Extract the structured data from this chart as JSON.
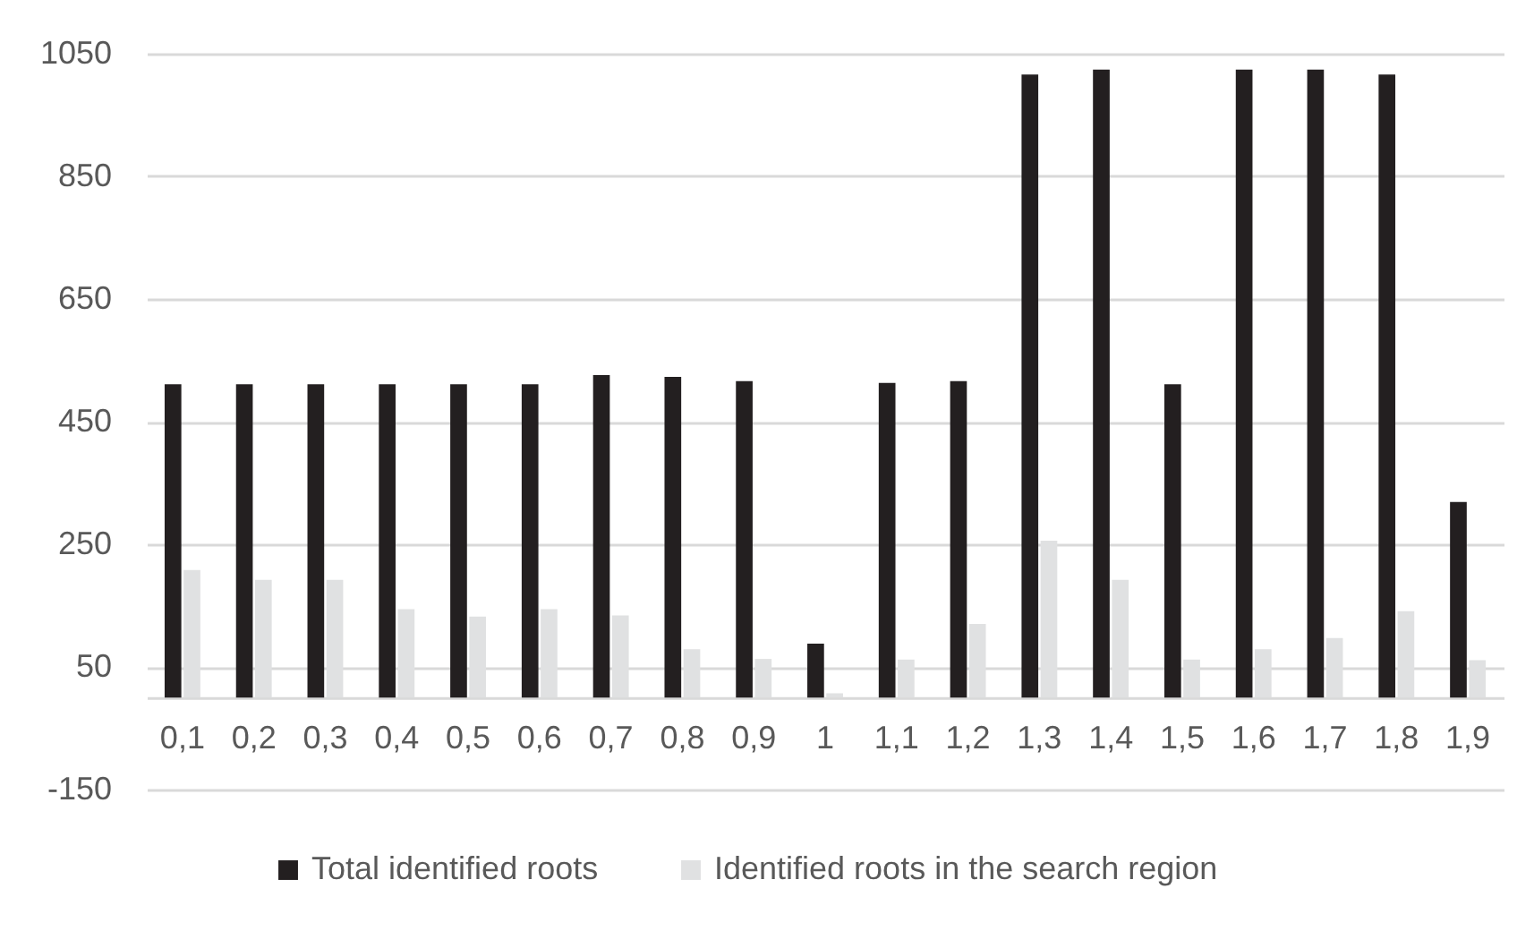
{
  "chart_data": {
    "type": "bar",
    "categories": [
      "0,1",
      "0,2",
      "0,3",
      "0,4",
      "0,5",
      "0,6",
      "0,7",
      "0,8",
      "0,9",
      "1",
      "1,1",
      "1,2",
      "1,3",
      "1,4",
      "1,5",
      "1,6",
      "1,7",
      "1,8",
      "1,9"
    ],
    "series": [
      {
        "name": "Total identified roots",
        "color": "#231f20",
        "values": [
          511,
          511,
          511,
          511,
          511,
          511,
          526,
          523,
          516,
          88,
          513,
          516,
          1016,
          1024,
          511,
          1024,
          1024,
          1016,
          319
        ]
      },
      {
        "name": "Identified roots in the search region",
        "color": "#e0e1e2",
        "values": [
          208,
          192,
          192,
          144,
          132,
          144,
          134,
          79,
          63,
          7,
          62,
          120,
          256,
          192,
          62,
          79,
          97,
          141,
          61
        ]
      }
    ],
    "ylim": [
      -150,
      1050
    ],
    "yticks": [
      -150,
      50,
      250,
      450,
      650,
      850,
      1050
    ],
    "grid": "y",
    "legend": "bottom"
  }
}
